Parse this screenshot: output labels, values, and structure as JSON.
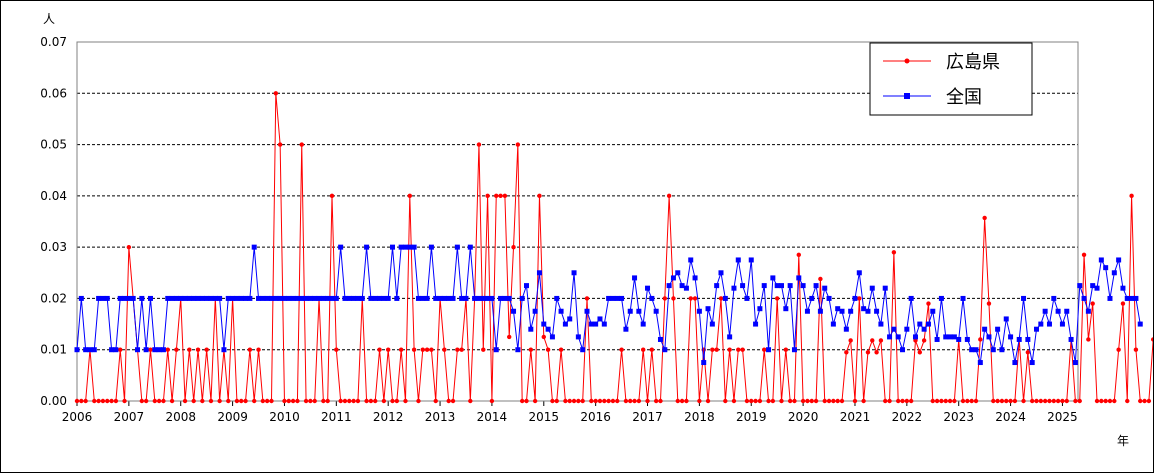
{
  "chart_data": {
    "type": "line",
    "y_unit_label": "人",
    "x_unit_label": "年",
    "ylim": [
      0,
      0.07
    ],
    "yticks": [
      "0.00",
      "0.01",
      "0.02",
      "0.03",
      "0.04",
      "0.05",
      "0.06",
      "0.07"
    ],
    "xlim": [
      2006.0,
      2025.3
    ],
    "year_ticks": [
      "2006",
      "2007",
      "2008",
      "2009",
      "2010",
      "2011",
      "2012",
      "2013",
      "2014",
      "2015",
      "2016",
      "2017",
      "2018",
      "2019",
      "2020",
      "2021",
      "2022",
      "2023",
      "2024",
      "2025"
    ],
    "grid": "horizontal-dashed",
    "legend_position": "top-right",
    "x_start": "2006-01",
    "x_step": "1 month",
    "series": [
      {
        "name": "広島県",
        "color": "#ff0000",
        "marker": "circle",
        "values": [
          0.0,
          0.0,
          0.0,
          0.01,
          0.0,
          0.0,
          0.0,
          0.0,
          0.0,
          0.0,
          0.01,
          0.0,
          0.03,
          0.02,
          0.01,
          0.0,
          0.0,
          0.01,
          0.0,
          0.0,
          0.0,
          0.01,
          0.0,
          0.01,
          0.02,
          0.0,
          0.01,
          0.0,
          0.01,
          0.0,
          0.01,
          0.0,
          0.02,
          0.0,
          0.01,
          0.0,
          0.02,
          0.0,
          0.0,
          0.0,
          0.01,
          0.0,
          0.01,
          0.0,
          0.0,
          0.0,
          0.06,
          0.05,
          0.0,
          0.0,
          0.0,
          0.0,
          0.05,
          0.0,
          0.0,
          0.0,
          0.02,
          0.0,
          0.0,
          0.04,
          0.01,
          0.0,
          0.0,
          0.0,
          0.0,
          0.0,
          0.02,
          0.0,
          0.0,
          0.0,
          0.01,
          0.0,
          0.01,
          0.0,
          0.0,
          0.01,
          0.0,
          0.04,
          0.01,
          0.0,
          0.01,
          0.01,
          0.01,
          0.0,
          0.02,
          0.01,
          0.0,
          0.0,
          0.01,
          0.01,
          0.02,
          0.0,
          0.02,
          0.05,
          0.01,
          0.04,
          0.0,
          0.04,
          0.04,
          0.04,
          0.0125,
          0.03,
          0.05,
          0.0,
          0.0,
          0.01,
          0.0,
          0.04,
          0.0125,
          0.01,
          0.0,
          0.0,
          0.01,
          0.0,
          0.0,
          0.0,
          0.0,
          0.0,
          0.02,
          0.0,
          0.0,
          0.0,
          0.0,
          0.0,
          0.0,
          0.0,
          0.01,
          0.0,
          0.0,
          0.0,
          0.0,
          0.01,
          0.0,
          0.01,
          0.0,
          0.0,
          0.02,
          0.04,
          0.02,
          0.0,
          0.0,
          0.0,
          0.02,
          0.02,
          0.0,
          0.01,
          0.0,
          0.01,
          0.01,
          0.02,
          0.0,
          0.01,
          0.0,
          0.01,
          0.01,
          0.0,
          0.0,
          0.0,
          0.0,
          0.01,
          0.0,
          0.0,
          0.02,
          0.0,
          0.01,
          0.0,
          0.0,
          0.0285,
          0.0,
          0.0,
          0.0,
          0.0,
          0.0238,
          0.0,
          0.0,
          0.0,
          0.0,
          0.0,
          0.0095,
          0.0118,
          0.0,
          0.02,
          0.0,
          0.0095,
          0.0118,
          0.0095,
          0.0118,
          0.0,
          0.0,
          0.029,
          0.0,
          0.0,
          0.0,
          0.0,
          0.0118,
          0.0095,
          0.0118,
          0.019,
          0.0,
          0.0,
          0.0,
          0.0,
          0.0,
          0.0,
          0.012,
          0.0,
          0.0,
          0.0,
          0.0,
          0.012,
          0.0357,
          0.019,
          0.0,
          0.0,
          0.0,
          0.0,
          0.0,
          0.0,
          0.012,
          0.0,
          0.0095,
          0.0,
          0.0,
          0.0,
          0.0,
          0.0,
          0.0,
          0.0,
          0.0,
          0.0,
          0.012,
          0.0,
          0.0,
          0.0285,
          0.012,
          0.019,
          0.0,
          0.0,
          0.0,
          0.0,
          0.0,
          0.01,
          0.019,
          0.0,
          0.04,
          0.01,
          0.0,
          0.0,
          0.0,
          0.012,
          0.0,
          0.0125,
          0.04,
          0.0,
          0.01,
          0.01,
          0.01,
          0.0
        ]
      },
      {
        "name": "全国",
        "color": "#0000ff",
        "marker": "square",
        "values": [
          0.01,
          0.02,
          0.01,
          0.01,
          0.01,
          0.02,
          0.02,
          0.02,
          0.01,
          0.01,
          0.02,
          0.02,
          0.02,
          0.02,
          0.01,
          0.02,
          0.01,
          0.02,
          0.01,
          0.01,
          0.01,
          0.02,
          0.02,
          0.02,
          0.02,
          0.02,
          0.02,
          0.02,
          0.02,
          0.02,
          0.02,
          0.02,
          0.02,
          0.02,
          0.01,
          0.02,
          0.02,
          0.02,
          0.02,
          0.02,
          0.02,
          0.03,
          0.02,
          0.02,
          0.02,
          0.02,
          0.02,
          0.02,
          0.02,
          0.02,
          0.02,
          0.02,
          0.02,
          0.02,
          0.02,
          0.02,
          0.02,
          0.02,
          0.02,
          0.02,
          0.02,
          0.03,
          0.02,
          0.02,
          0.02,
          0.02,
          0.02,
          0.03,
          0.02,
          0.02,
          0.02,
          0.02,
          0.02,
          0.03,
          0.02,
          0.03,
          0.03,
          0.03,
          0.03,
          0.02,
          0.02,
          0.02,
          0.03,
          0.02,
          0.02,
          0.02,
          0.02,
          0.02,
          0.03,
          0.02,
          0.02,
          0.03,
          0.02,
          0.02,
          0.02,
          0.02,
          0.02,
          0.01,
          0.02,
          0.02,
          0.02,
          0.0175,
          0.01,
          0.02,
          0.0225,
          0.014,
          0.0175,
          0.025,
          0.015,
          0.014,
          0.0125,
          0.02,
          0.0175,
          0.015,
          0.016,
          0.025,
          0.0125,
          0.01,
          0.0175,
          0.015,
          0.015,
          0.016,
          0.015,
          0.02,
          0.02,
          0.02,
          0.02,
          0.014,
          0.0175,
          0.024,
          0.0175,
          0.015,
          0.022,
          0.02,
          0.0175,
          0.012,
          0.01,
          0.0225,
          0.024,
          0.025,
          0.0225,
          0.022,
          0.0275,
          0.024,
          0.0175,
          0.0075,
          0.018,
          0.015,
          0.0225,
          0.025,
          0.02,
          0.0125,
          0.022,
          0.0275,
          0.0225,
          0.02,
          0.0275,
          0.015,
          0.018,
          0.0225,
          0.01,
          0.024,
          0.0225,
          0.0225,
          0.018,
          0.0225,
          0.01,
          0.024,
          0.0225,
          0.0175,
          0.02,
          0.0225,
          0.0175,
          0.022,
          0.02,
          0.015,
          0.018,
          0.0175,
          0.014,
          0.0175,
          0.02,
          0.025,
          0.018,
          0.0175,
          0.022,
          0.0175,
          0.015,
          0.022,
          0.0125,
          0.014,
          0.0125,
          0.01,
          0.014,
          0.02,
          0.0125,
          0.015,
          0.014,
          0.015,
          0.0175,
          0.012,
          0.02,
          0.0125,
          0.0125,
          0.0125,
          0.012,
          0.02,
          0.012,
          0.01,
          0.01,
          0.0075,
          0.014,
          0.0125,
          0.01,
          0.014,
          0.01,
          0.016,
          0.0125,
          0.0075,
          0.012,
          0.02,
          0.012,
          0.0075,
          0.014,
          0.015,
          0.0175,
          0.015,
          0.02,
          0.0175,
          0.015,
          0.0175,
          0.012,
          0.0075,
          0.0225,
          0.02,
          0.0175,
          0.0225,
          0.022,
          0.0275,
          0.026,
          0.02,
          0.025,
          0.0275,
          0.022,
          0.02,
          0.02,
          0.02,
          0.015
        ]
      }
    ]
  }
}
